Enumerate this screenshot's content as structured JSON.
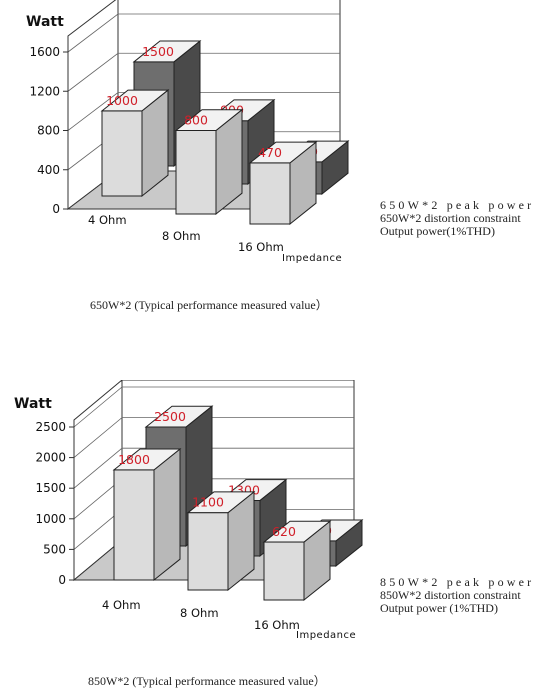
{
  "chart_data": [
    {
      "type": "bar",
      "ylabel": "Watt",
      "xlabel": "Impedance",
      "ylim": [
        0,
        1800
      ],
      "y_ticks": [
        "0",
        "400",
        "800",
        "1200",
        "1600"
      ],
      "y_tick_values": [
        0,
        400,
        800,
        1200,
        1600
      ],
      "categories": [
        "4 Ohm",
        "8 Ohm",
        "16 Ohm"
      ],
      "series": [
        {
          "name": "650W*2 distortion constraint Output power(1%THD)",
          "values": [
            1000,
            800,
            470
          ],
          "color": "#dcdcdc"
        },
        {
          "name": "650W*2 peak power",
          "values": [
            1500,
            900,
            480
          ],
          "color": "#6e6e6e"
        }
      ],
      "value_labels": [
        [
          "1000",
          "800",
          "470"
        ],
        [
          "1500",
          "900",
          "480"
        ]
      ],
      "grid": true,
      "legend_lines": [
        "650W*2 peak power",
        "650W*2 distortion constraint",
        "Output power(1%THD)"
      ],
      "caption": "650W*2 (Typical performance measured value）"
    },
    {
      "type": "bar",
      "ylabel": "Watt",
      "xlabel": "Impedance",
      "ylim": [
        0,
        2700
      ],
      "y_ticks": [
        "0",
        "500",
        "1000",
        "1500",
        "2000",
        "2500"
      ],
      "y_tick_values": [
        0,
        500,
        1000,
        1500,
        2000,
        2500
      ],
      "categories": [
        "4 Ohm",
        "8 Ohm",
        "16 Ohm"
      ],
      "series": [
        {
          "name": "850W*2 distortion constraint Output power (1%THD)",
          "values": [
            1800,
            1100,
            620
          ],
          "color": "#dcdcdc"
        },
        {
          "name": "850W*2 peak power",
          "values": [
            2500,
            1300,
            640
          ],
          "color": "#6e6e6e"
        }
      ],
      "value_labels": [
        [
          "1800",
          "1100",
          "620"
        ],
        [
          "2500",
          "1300",
          "640"
        ]
      ],
      "grid": true,
      "legend_lines": [
        "850W*2 peak power",
        "850W*2 distortion constraint",
        "Output power (1%THD)"
      ],
      "caption": "850W*2 (Typical performance measured value）"
    }
  ],
  "colors": {
    "label_red": "#d0202a",
    "floor": "#c9c9c9",
    "axis": "#333333"
  }
}
